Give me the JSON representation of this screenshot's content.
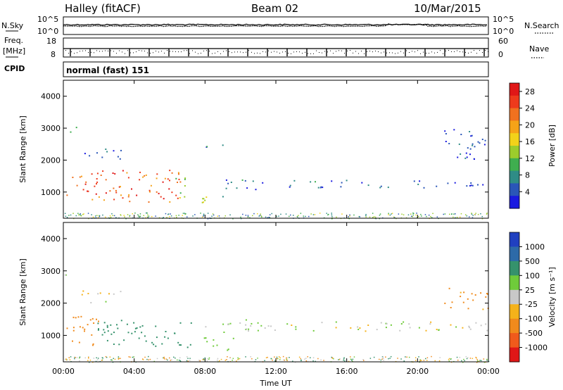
{
  "header": {
    "station": "Halley (fitACF)",
    "beam": "Beam 02",
    "date": "10/Mar/2015"
  },
  "strips": {
    "nsky_label": "N.Sky",
    "nsky_ticks": [
      "10^5",
      "10^0"
    ],
    "nsearch_label": "N.Search",
    "nsearch_ticks": [
      "10^5",
      "10^0"
    ],
    "freq_label_1": "Freq.",
    "freq_label_2": "[MHz]",
    "freq_ticks": [
      "18",
      "8"
    ],
    "nave_label": "Nave",
    "nave_ticks": [
      "60",
      "0"
    ],
    "cpid_label": "CPID",
    "cpid_value": "normal (fast) 151"
  },
  "chart_data": [
    {
      "type": "heatmap",
      "title": "",
      "ylabel": "Slant Range [km]",
      "xlabel": "",
      "ylim": [
        180,
        4500
      ],
      "yticks": [
        "1000",
        "2000",
        "3000",
        "4000"
      ],
      "colorbar": {
        "label": "Power [dB]",
        "ticks": [
          "4",
          "8",
          "12",
          "16",
          "20",
          "24",
          "28"
        ],
        "colors": [
          "#1a1ae0",
          "#2a56b8",
          "#2f8c86",
          "#3fae4f",
          "#9ccc2c",
          "#f2d21a",
          "#f6a318",
          "#f0711f",
          "#ee3a1c",
          "#e01717"
        ]
      },
      "echo_regions": [
        {
          "t0": 0.0,
          "t1": 6.7,
          "r0": 700,
          "r1": 1700,
          "value": 24
        },
        {
          "t0": 6.3,
          "t1": 7.2,
          "r0": 800,
          "r1": 1500,
          "value": 14
        },
        {
          "t0": 7.8,
          "t1": 9.2,
          "r0": 550,
          "r1": 1000,
          "value": 12
        },
        {
          "t0": 9.0,
          "t1": 11.5,
          "r0": 1100,
          "r1": 1500,
          "value": 6
        },
        {
          "t0": 12.5,
          "t1": 23.9,
          "r0": 1150,
          "r1": 1400,
          "value": 5
        },
        {
          "t0": 0.0,
          "t1": 0.9,
          "r0": 2850,
          "r1": 3050,
          "value": 5
        },
        {
          "t0": 1.0,
          "t1": 3.3,
          "r0": 2000,
          "r1": 2400,
          "value": 4
        },
        {
          "t0": 8.0,
          "t1": 9.0,
          "r0": 2200,
          "r1": 2500,
          "value": 5
        },
        {
          "t0": 21.5,
          "t1": 24.0,
          "r0": 2000,
          "r1": 3000,
          "value": 4
        }
      ]
    },
    {
      "type": "heatmap",
      "title": "",
      "ylabel": "Slant Range [km]",
      "xlabel": "Time UT",
      "ylim": [
        180,
        4500
      ],
      "yticks": [
        "1000",
        "2000",
        "3000",
        "4000"
      ],
      "xticks": [
        "00:00",
        "04:00",
        "08:00",
        "12:00",
        "16:00",
        "20:00",
        "00:00"
      ],
      "colorbar": {
        "label": "Velocity [m s⁻¹]",
        "ticks": [
          "1000",
          "500",
          "100",
          "25",
          "-25",
          "-100",
          "-500",
          "-1000"
        ],
        "colors": [
          "#2040c0",
          "#2d6aa8",
          "#35926c",
          "#6fcb3a",
          "#c8c8c8",
          "#f5b21a",
          "#f08a1c",
          "#f05a1c",
          "#e01717"
        ]
      },
      "echo_regions": [
        {
          "t0": 0.0,
          "t1": 2.0,
          "r0": 700,
          "r1": 1700,
          "value": -200
        },
        {
          "t0": 1.8,
          "t1": 7.2,
          "r0": 650,
          "r1": 1500,
          "value": 300
        },
        {
          "t0": 7.8,
          "t1": 9.6,
          "r0": 550,
          "r1": 1000,
          "value": 60
        },
        {
          "t0": 9.0,
          "t1": 11.5,
          "r0": 1100,
          "r1": 1500,
          "value": 60
        },
        {
          "t0": 8.0,
          "t1": 23.9,
          "r0": 1150,
          "r1": 1450,
          "value": 0
        },
        {
          "t0": 0.0,
          "t1": 1.0,
          "r0": 2800,
          "r1": 3000,
          "value": 0
        },
        {
          "t0": 1.0,
          "t1": 3.3,
          "r0": 2000,
          "r1": 2400,
          "value": 0
        },
        {
          "t0": 21.5,
          "t1": 24.0,
          "r0": 1800,
          "r1": 2500,
          "value": -150
        }
      ]
    }
  ]
}
